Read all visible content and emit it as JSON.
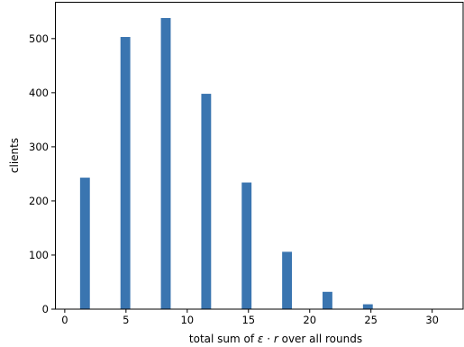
{
  "chart_data": {
    "type": "bar",
    "title": "",
    "xlabel_parts": {
      "prefix": "total sum of ",
      "epsilon": "ε",
      "dot": " · ",
      "r": "r",
      "suffix": " over all rounds"
    },
    "ylabel": "clients",
    "xlim": [
      -0.8,
      32.6
    ],
    "ylim": [
      0,
      568
    ],
    "xticks": [
      0,
      5,
      10,
      15,
      20,
      25,
      30
    ],
    "yticks": [
      0,
      100,
      200,
      300,
      400,
      500
    ],
    "bar_width": 0.8,
    "bars": [
      {
        "x": 1.65,
        "value": 243
      },
      {
        "x": 4.95,
        "value": 503
      },
      {
        "x": 8.25,
        "value": 538
      },
      {
        "x": 11.55,
        "value": 398
      },
      {
        "x": 14.85,
        "value": 234
      },
      {
        "x": 18.15,
        "value": 106
      },
      {
        "x": 21.45,
        "value": 32
      },
      {
        "x": 24.75,
        "value": 9
      }
    ],
    "bar_color": "#3a75b0",
    "grid": false,
    "legend": "none"
  }
}
